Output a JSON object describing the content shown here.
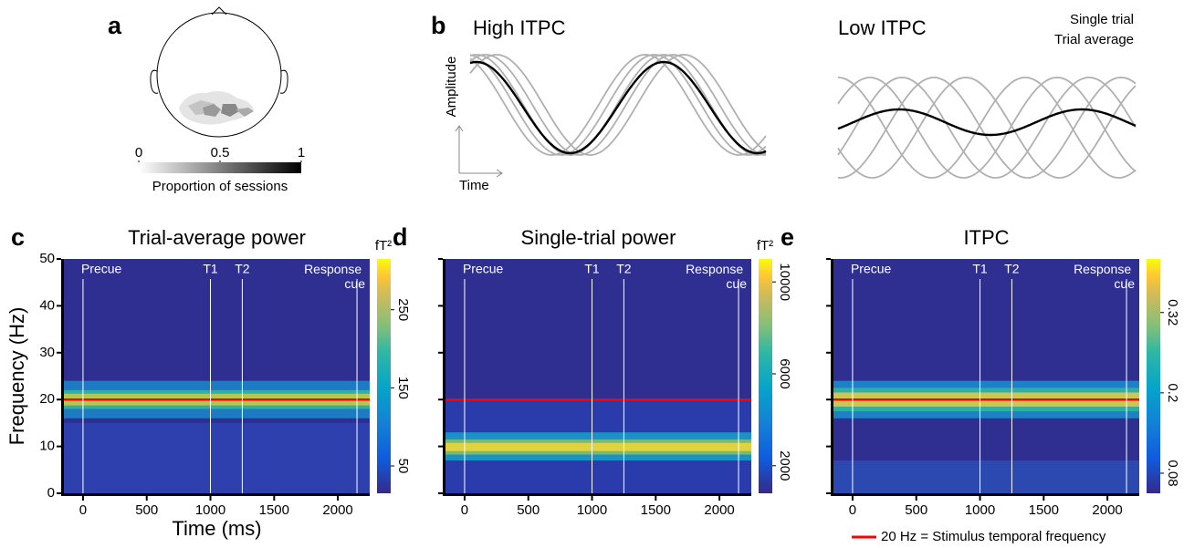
{
  "chart_data": [
    {
      "type": "topomap",
      "label": "a",
      "colorbar_ticks": [
        0,
        0.5,
        1
      ],
      "colorbar_label": "Proportion of sessions"
    },
    {
      "type": "illustration",
      "label": "b",
      "panels": [
        {
          "title": "High ITPC"
        },
        {
          "title": "Low ITPC"
        }
      ],
      "ylabel": "Amplitude",
      "xlabel": "Time",
      "legend": [
        {
          "name": "Single trial",
          "color": "#b0b0b0"
        },
        {
          "name": "Trial average",
          "color": "#000000"
        }
      ]
    },
    {
      "type": "heatmap",
      "label": "c",
      "title": "Trial-average power",
      "xlabel": "Time (ms)",
      "ylabel": "Frequency (Hz)",
      "xlim": [
        -150,
        2250
      ],
      "xticks": [
        0,
        500,
        1000,
        1500,
        2000
      ],
      "ylim": [
        0,
        50
      ],
      "yticks": [
        0,
        10,
        20,
        30,
        40,
        50
      ],
      "events": [
        {
          "label": "Precue",
          "value": 0
        },
        {
          "label": "T1",
          "value": 1000
        },
        {
          "label": "T2",
          "value": 1250
        },
        {
          "label": "Response cue",
          "value": 2150
        }
      ],
      "colorbar_label": "fT²",
      "clim": [
        15,
        315
      ],
      "cticks": [
        50,
        150,
        250
      ],
      "stimulus_frequency": 20,
      "line_color": "#ff0000"
    },
    {
      "type": "heatmap",
      "label": "d",
      "title": "Single-trial power",
      "xlim": [
        -150,
        2250
      ],
      "xticks": [
        0,
        500,
        1000,
        1500,
        2000
      ],
      "ylim": [
        0,
        50
      ],
      "events": [
        {
          "label": "Precue",
          "value": 0
        },
        {
          "label": "T1",
          "value": 1000
        },
        {
          "label": "T2",
          "value": 1250
        },
        {
          "label": "Response cue",
          "value": 2150
        }
      ],
      "colorbar_label": "fT²",
      "clim": [
        800,
        11000
      ],
      "cticks": [
        2000,
        6000,
        10000
      ],
      "stimulus_frequency": 20,
      "line_color": "#ff0000"
    },
    {
      "type": "heatmap",
      "label": "e",
      "title": "ITPC",
      "xlim": [
        -150,
        2250
      ],
      "xticks": [
        0,
        500,
        1000,
        1500,
        2000
      ],
      "ylim": [
        0,
        50
      ],
      "events": [
        {
          "label": "Precue",
          "value": 0
        },
        {
          "label": "T1",
          "value": 1000
        },
        {
          "label": "T2",
          "value": 1250
        },
        {
          "label": "Response cue",
          "value": 2150
        }
      ],
      "clim": [
        0.05,
        0.4
      ],
      "cticks": [
        0.08,
        0.2,
        0.32
      ],
      "stimulus_frequency": 20,
      "line_color": "#ff0000",
      "legend": "20 Hz = Stimulus temporal frequency"
    }
  ]
}
